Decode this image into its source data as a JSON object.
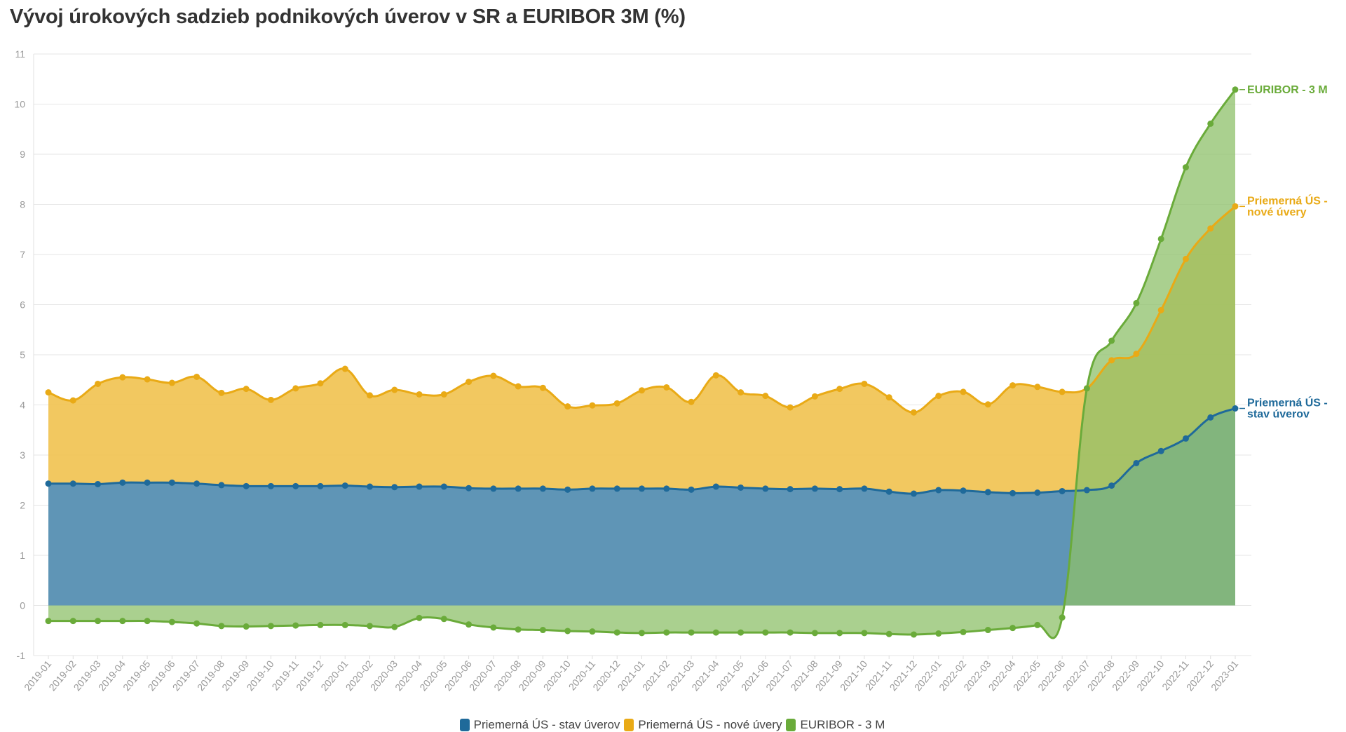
{
  "title": "Vývoj úrokových sadzieb podnikových úverov v SR a EURIBOR 3M (%)",
  "chart_data": {
    "type": "area",
    "title": "Vývoj úrokových sadzieb podnikových úverov v SR a EURIBOR 3M (%)",
    "xlabel": "",
    "ylabel": "",
    "ylim": [
      -1,
      11
    ],
    "yticks": [
      "-1",
      "0",
      "1",
      "2",
      "3",
      "4",
      "5",
      "6",
      "7",
      "8",
      "9",
      "10",
      "11"
    ],
    "grid": true,
    "legend_position": "bottom",
    "categories": [
      "2019-01",
      "2019-02",
      "2019-03",
      "2019-04",
      "2019-05",
      "2019-06",
      "2019-07",
      "2019-08",
      "2019-09",
      "2019-10",
      "2019-11",
      "2019-12",
      "2020-01",
      "2020-02",
      "2020-03",
      "2020-04",
      "2020-05",
      "2020-06",
      "2020-07",
      "2020-08",
      "2020-09",
      "2020-10",
      "2020-11",
      "2020-12",
      "2021-01",
      "2021-02",
      "2021-03",
      "2021-04",
      "2021-05",
      "2021-06",
      "2021-07",
      "2021-08",
      "2021-09",
      "2021-10",
      "2021-11",
      "2021-12",
      "2022-01",
      "2022-02",
      "2022-03",
      "2022-04",
      "2022-05",
      "2022-06",
      "2022-07",
      "2022-08",
      "2022-09",
      "2022-10",
      "2022-11",
      "2022-12",
      "2023-01"
    ],
    "series": [
      {
        "name": "Priemerná ÚS - stav úverov",
        "end_label_lines": [
          "Priemerná ÚS -",
          "stav úverov"
        ],
        "color": "#1f6a9a",
        "fill": "#5f95b6",
        "values": [
          2.43,
          2.43,
          2.42,
          2.45,
          2.45,
          2.45,
          2.43,
          2.4,
          2.38,
          2.38,
          2.38,
          2.38,
          2.39,
          2.37,
          2.36,
          2.37,
          2.37,
          2.34,
          2.33,
          2.33,
          2.33,
          2.31,
          2.33,
          2.33,
          2.33,
          2.33,
          2.31,
          2.37,
          2.35,
          2.33,
          2.32,
          2.33,
          2.32,
          2.33,
          2.27,
          2.23,
          2.3,
          2.29,
          2.26,
          2.24,
          2.25,
          2.28,
          2.3,
          2.39,
          2.84,
          3.08,
          3.33,
          3.75,
          3.93
        ]
      },
      {
        "name": "Priemerná ÚS - nové úvery",
        "end_label_lines": [
          "Priemerná ÚS -",
          "nové úvery"
        ],
        "color": "#e9aa16",
        "fill": "#f1c24f",
        "values": [
          4.25,
          4.09,
          4.42,
          4.55,
          4.51,
          4.44,
          4.56,
          4.24,
          4.32,
          4.1,
          4.33,
          4.43,
          4.72,
          4.19,
          4.3,
          4.21,
          4.21,
          4.46,
          4.58,
          4.37,
          4.34,
          3.97,
          3.99,
          4.03,
          4.29,
          4.35,
          4.06,
          4.59,
          4.25,
          4.18,
          3.95,
          4.17,
          4.32,
          4.42,
          4.15,
          3.85,
          4.18,
          4.26,
          4.01,
          4.39,
          4.36,
          4.26,
          4.33,
          4.89,
          5.02,
          5.89,
          6.91,
          7.52,
          7.96
        ]
      },
      {
        "name": "EURIBOR - 3 M",
        "end_label_lines": [
          "EURIBOR - 3 M"
        ],
        "color": "#6aab3a",
        "fill": "#8ec06a",
        "values": [
          -0.31,
          -0.31,
          -0.31,
          -0.31,
          -0.31,
          -0.33,
          -0.36,
          -0.41,
          -0.42,
          -0.41,
          -0.4,
          -0.39,
          -0.39,
          -0.41,
          -0.43,
          -0.25,
          -0.27,
          -0.38,
          -0.44,
          -0.48,
          -0.49,
          -0.51,
          -0.52,
          -0.54,
          -0.55,
          -0.54,
          -0.54,
          -0.54,
          -0.54,
          -0.54,
          -0.54,
          -0.55,
          -0.55,
          -0.55,
          -0.57,
          -0.58,
          -0.56,
          -0.53,
          -0.49,
          -0.45,
          -0.39,
          -0.24,
          4.33,
          5.28,
          6.03,
          7.31,
          8.74,
          9.61,
          10.29
        ]
      }
    ]
  }
}
